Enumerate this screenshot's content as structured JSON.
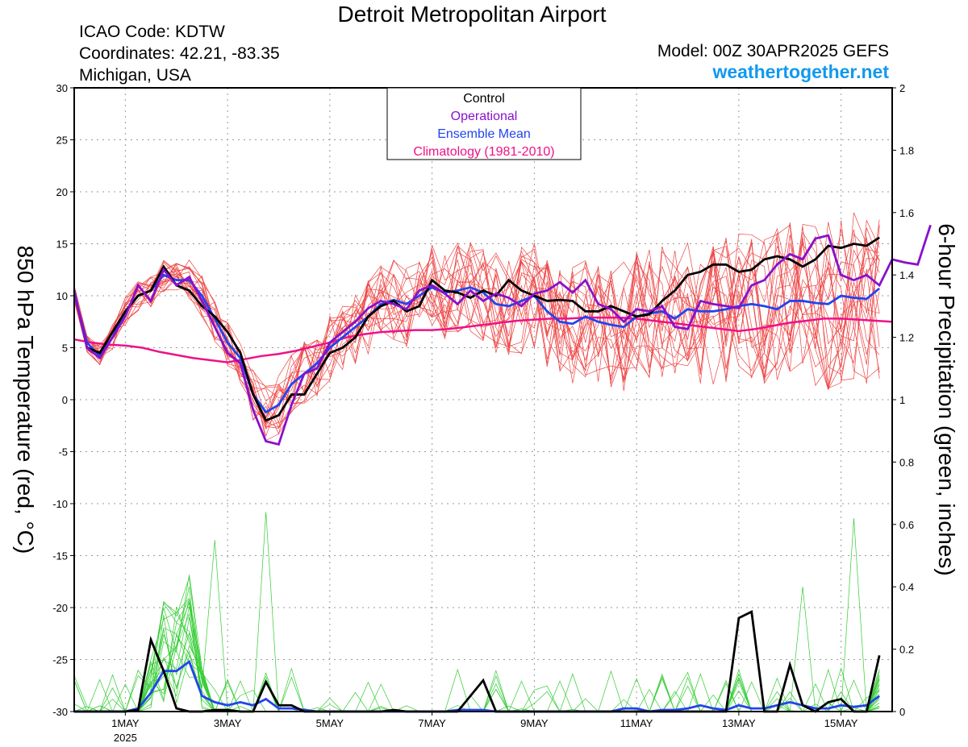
{
  "header": {
    "title": "Detroit Metropolitan Airport",
    "icao": "ICAO Code: KDTW",
    "coordinates": "Coordinates: 42.21, -83.35",
    "region": "Michigan, USA",
    "model": "Model: 00Z 30APR2025 GEFS",
    "site": "weathertogether.net"
  },
  "colors": {
    "members_temp": "#ee4444",
    "members_precip": "#33cc33",
    "control": "#000000",
    "operational": "#8811cc",
    "ensemble_mean": "#2244ee",
    "climatology": "#ee1188"
  },
  "chart_data": {
    "type": "line",
    "title": "Detroit Metropolitan Airport",
    "x_unit": "6-hour steps from 00Z 30 APR 2025",
    "x_range": [
      0,
      64
    ],
    "x_ticks": [
      {
        "x": 4,
        "label": "1MAY",
        "sub": "2025"
      },
      {
        "x": 12,
        "label": "3MAY"
      },
      {
        "x": 20,
        "label": "5MAY"
      },
      {
        "x": 28,
        "label": "7MAY"
      },
      {
        "x": 36,
        "label": "9MAY"
      },
      {
        "x": 44,
        "label": "11MAY"
      },
      {
        "x": 52,
        "label": "13MAY"
      },
      {
        "x": 60,
        "label": "15MAY"
      }
    ],
    "y_left": {
      "label": "850 hPa Temperature (red, °C)",
      "range": [
        -30,
        30
      ],
      "ticks": [
        "30",
        "25",
        "20",
        "15",
        "10",
        "5",
        "0",
        "-5",
        "-10",
        "-15",
        "-20",
        "-25",
        "-30"
      ]
    },
    "y_right": {
      "label": "6-hour Precipitation (green, inches)",
      "range": [
        0,
        2
      ],
      "ticks": [
        "2",
        "1.8",
        "1.6",
        "1.4",
        "1.2",
        "1",
        "0.8",
        "0.6",
        "0.4",
        "0.2",
        "0"
      ]
    },
    "grid": true,
    "legend": {
      "placement": "top-center",
      "entries": [
        {
          "label": "Control",
          "color": "#000000"
        },
        {
          "label": "Operational",
          "color": "#8811cc"
        },
        {
          "label": "Ensemble Mean",
          "color": "#2244ee"
        },
        {
          "label": "Climatology (1981-2010)",
          "color": "#ee1188"
        }
      ]
    },
    "temperature_series": [
      {
        "key": "operational",
        "values": [
          10.5,
          5,
          4,
          6,
          8,
          11,
          9.5,
          12.5,
          11,
          11.8,
          9.5,
          7,
          4.5,
          3.5,
          -1,
          -4,
          -4.3,
          -0.5,
          2.5,
          3,
          5.5,
          6.5,
          7.5,
          8.8,
          9.5,
          9.2,
          8.7,
          10.5,
          11,
          10.2,
          9.2,
          10.5,
          9.5,
          10.2,
          9.8,
          9,
          10.2,
          10.5,
          11.3,
          10.3,
          11.5,
          9.2,
          8.7,
          7.5,
          8.7,
          8.5,
          9,
          7,
          6.8,
          9.5,
          9.2,
          9,
          8.8,
          11,
          11.5,
          13,
          14,
          13.5,
          15.5,
          15.8,
          12,
          11.5,
          12,
          11,
          13.5,
          13.2,
          13,
          16.8
        ]
      },
      {
        "key": "control",
        "values": [
          10.5,
          5,
          4.5,
          6.5,
          8.5,
          10,
          10.5,
          12.8,
          11,
          10.5,
          9,
          8,
          6.5,
          4.5,
          0.5,
          -2,
          -1.5,
          0.5,
          0.5,
          2.5,
          4.5,
          5,
          6,
          8,
          9,
          9.5,
          8.5,
          9,
          11.5,
          10.5,
          10.3,
          9.8,
          10.5,
          10,
          11.5,
          10.5,
          10,
          9.5,
          9.6,
          9.5,
          8.5,
          8.5,
          9,
          8.5,
          8,
          8.2,
          9.5,
          10.5,
          12,
          12.3,
          13,
          13,
          12.3,
          12.5,
          13.5,
          13.8,
          13.5,
          12.8,
          13.5,
          14.8,
          14.6,
          15,
          14.8,
          15.6
        ]
      },
      {
        "key": "ensemble_mean",
        "values": [
          10.2,
          5.5,
          4.2,
          6,
          8.5,
          10,
          10.5,
          12,
          11.5,
          11.5,
          10,
          7.8,
          5.5,
          4,
          0.5,
          -1.2,
          -0.5,
          1.5,
          2.5,
          3.5,
          5,
          6,
          7,
          8,
          9.2,
          9.6,
          9.2,
          10,
          10.8,
          10.3,
          10.5,
          10.8,
          10.3,
          9.2,
          9,
          9.5,
          10,
          8.5,
          7.5,
          7.3,
          8,
          7.5,
          7.2,
          7,
          8,
          8.3,
          8.5,
          7.8,
          8.7,
          8.5,
          8.5,
          8.7,
          9,
          9.2,
          9,
          8.7,
          9.5,
          9.5,
          9.3,
          9.2,
          10,
          9.8,
          9.7,
          10.7
        ]
      },
      {
        "key": "climatology",
        "values": [
          5.8,
          5.5,
          5.3,
          5.2,
          5,
          4.6,
          4.3,
          4,
          3.8,
          3.6,
          3.9,
          4.2,
          4.4,
          4.7,
          5.1,
          5.5,
          6,
          6.3,
          6.5,
          6.6,
          6.7,
          6.7,
          6.8,
          7,
          7.2,
          7.4,
          7.6,
          7.7,
          7.8,
          7.8,
          7.9,
          7.9,
          7.9,
          7.8,
          7.6,
          7.4,
          7.2,
          7,
          6.8,
          6.6,
          6.8,
          7.1,
          7.4,
          7.6,
          7.8,
          7.8,
          7.7,
          7.6,
          7.5
        ]
      }
    ],
    "climatology_x_step": 1.333,
    "precipitation_series": [
      {
        "key": "control",
        "values": [
          0,
          0,
          0,
          0,
          0,
          0.005,
          0.23,
          0.13,
          0.01,
          0,
          0,
          0.005,
          0.005,
          0,
          0,
          0.095,
          0.02,
          0.02,
          0,
          0,
          0,
          0,
          0,
          0,
          0,
          0.005,
          0,
          0,
          0,
          0,
          0,
          0.05,
          0.1,
          0,
          0,
          0,
          0,
          0,
          0,
          0,
          0,
          0,
          0,
          0,
          0,
          0,
          0,
          0,
          0,
          0,
          0,
          0,
          0.3,
          0.32,
          0,
          0,
          0.15,
          0.02,
          0,
          0.03,
          0.04,
          0,
          0,
          0.18
        ]
      },
      {
        "key": "ensemble_mean",
        "values": [
          0,
          0,
          0,
          0,
          0,
          0.01,
          0.06,
          0.13,
          0.13,
          0.16,
          0.05,
          0.03,
          0.02,
          0.03,
          0.02,
          0.04,
          0.01,
          0.01,
          0.005,
          0,
          0,
          0,
          0,
          0,
          0,
          0,
          0,
          0,
          0,
          0,
          0.005,
          0.005,
          0.005,
          0,
          0,
          0,
          0,
          0,
          0,
          0,
          0,
          0,
          0,
          0.01,
          0.01,
          0,
          0.005,
          0.005,
          0.01,
          0.02,
          0.01,
          0.005,
          0.02,
          0.01,
          0.01,
          0.02,
          0.03,
          0.02,
          0.01,
          0.01,
          0.02,
          0.015,
          0.02,
          0.05
        ]
      }
    ]
  }
}
